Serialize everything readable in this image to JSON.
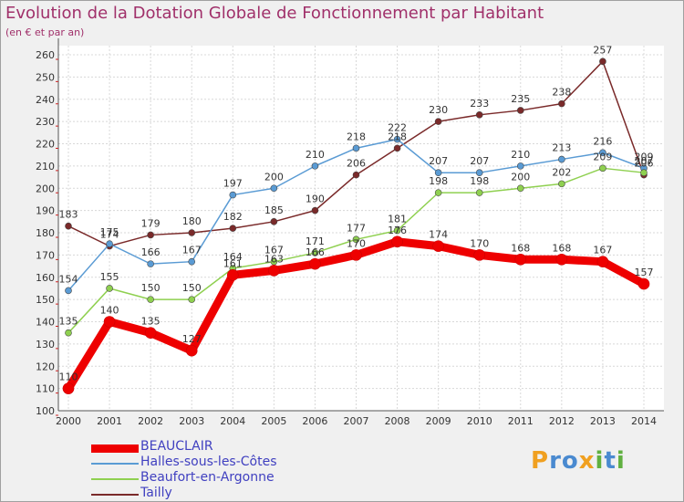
{
  "chart_data": {
    "type": "line",
    "title": "Evolution de la Dotation Globale de Fonctionnement par Habitant",
    "subtitle": "(en € et par an)",
    "xlabel": "",
    "ylabel": "",
    "ylim": [
      100,
      260
    ],
    "yticks": [
      100,
      110,
      120,
      130,
      140,
      150,
      160,
      170,
      180,
      190,
      200,
      210,
      220,
      230,
      240,
      250,
      260
    ],
    "categories": [
      "2000",
      "2001",
      "2002",
      "2003",
      "2004",
      "2005",
      "2006",
      "2007",
      "2008",
      "2009",
      "2010",
      "2011",
      "2012",
      "2013",
      "2014"
    ],
    "grid": true,
    "legend_position": "bottom-left",
    "series": [
      {
        "name": "BEAUCLAIR",
        "color": "#ee0000",
        "values": [
          110,
          140,
          135,
          127,
          161,
          163,
          166,
          170,
          176,
          174,
          170,
          168,
          168,
          167,
          157
        ],
        "labels": [
          "110",
          "140",
          "135",
          "127",
          "161",
          "163",
          "166",
          "170",
          "176",
          "174",
          "170",
          "168",
          "168",
          "167",
          "157"
        ]
      },
      {
        "name": "Halles-sous-les-Côtes",
        "color": "#5a9bd4",
        "values": [
          154,
          175,
          166,
          167,
          197,
          200,
          210,
          218,
          222,
          207,
          207,
          210,
          213,
          216,
          209
        ],
        "labels": [
          "154",
          "175",
          "166",
          "167",
          "197",
          "200",
          "210",
          "218",
          "222",
          "207",
          "207",
          "210",
          "213",
          "216",
          "209"
        ]
      },
      {
        "name": "Beaufort-en-Argonne",
        "color": "#8fd050",
        "values": [
          135,
          155,
          150,
          150,
          164,
          167,
          171,
          177,
          181,
          198,
          198,
          200,
          202,
          209,
          207
        ],
        "labels": [
          "135",
          "155",
          "150",
          "150",
          "164",
          "167",
          "171",
          "177",
          "181",
          "198",
          "198",
          "200",
          "202",
          "209",
          "207"
        ]
      },
      {
        "name": "Tailly",
        "color": "#7a2a2a",
        "values": [
          183,
          174,
          179,
          180,
          182,
          185,
          190,
          206,
          218,
          230,
          233,
          235,
          238,
          257,
          206
        ],
        "labels": [
          "183",
          "174",
          "179",
          "180",
          "182",
          "185",
          "190",
          "206",
          "218",
          "230",
          "233",
          "235",
          "238",
          "257",
          "206"
        ]
      }
    ]
  },
  "brand": {
    "letters": [
      "P",
      "r",
      "o",
      "x",
      "i",
      "t",
      "i"
    ],
    "colors": [
      "#f0a020",
      "#4a8ad0",
      "#4a8ad0",
      "#f0a020",
      "#60b040",
      "#4a8ad0",
      "#60b040"
    ]
  }
}
